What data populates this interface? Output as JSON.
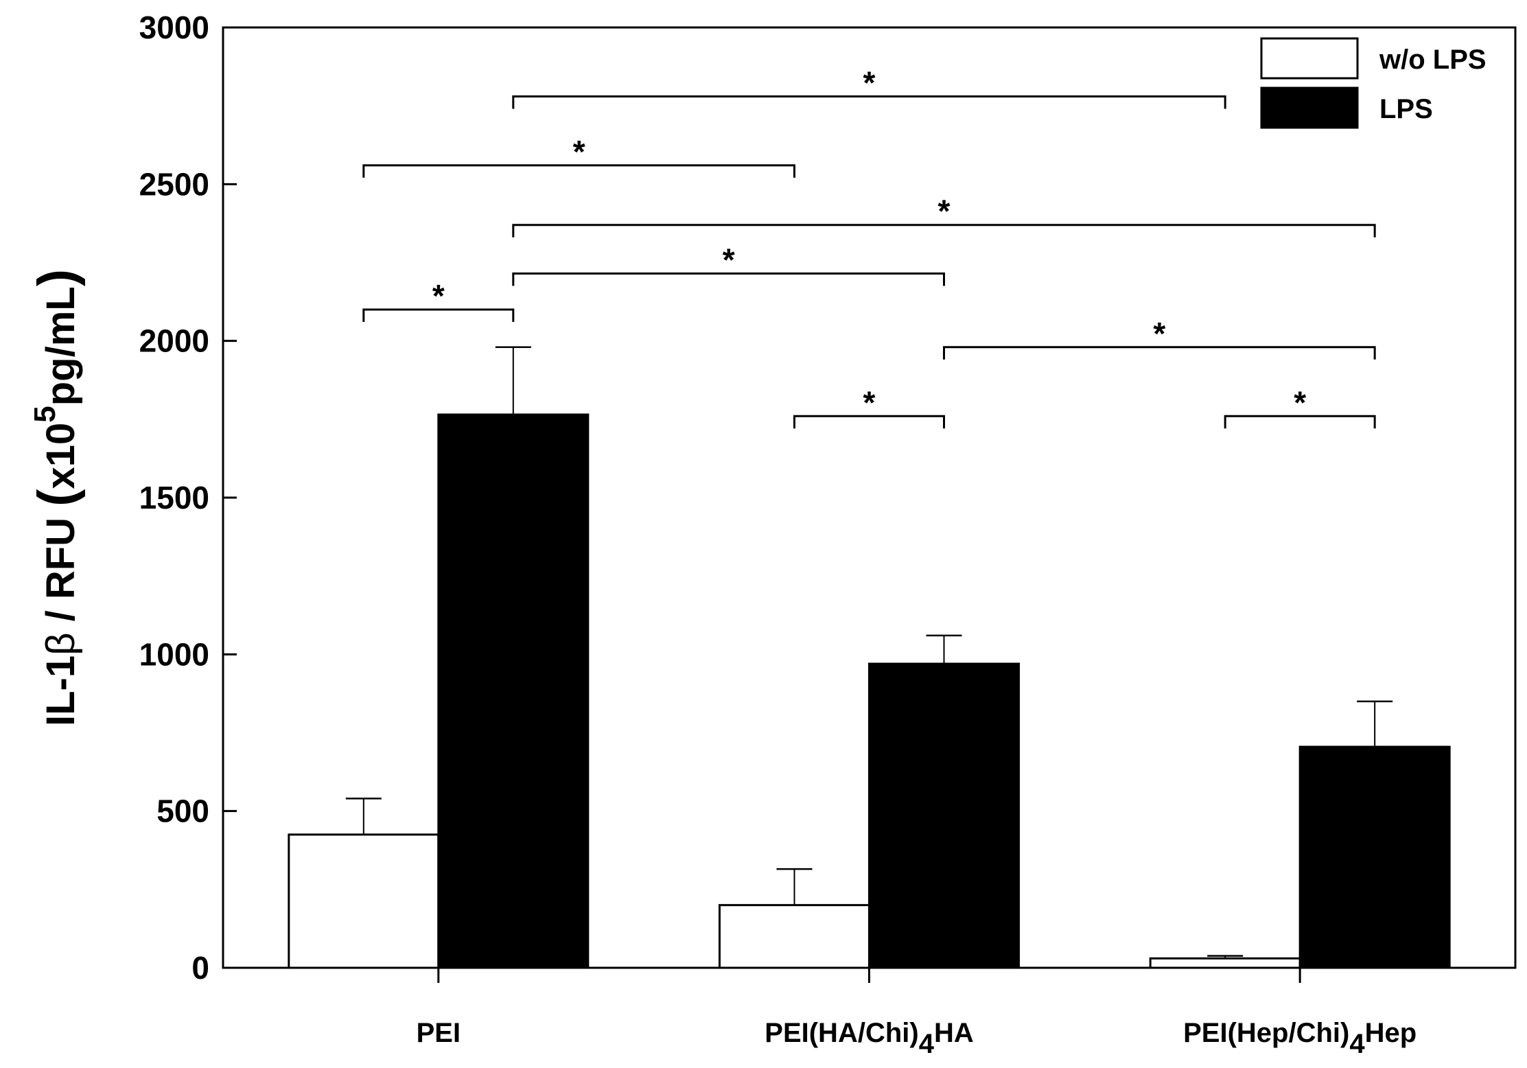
{
  "chart_data": {
    "type": "bar",
    "categories": [
      "PEI",
      "PEI(HA/Chi)4HA",
      "PEI(Hep/Chi)4Hep"
    ],
    "category_display": [
      {
        "main": "PEI",
        "sub": "",
        "tail": ""
      },
      {
        "main": "PEI(HA/Chi)",
        "sub": "4",
        "tail": "HA"
      },
      {
        "main": "PEI(Hep/Chi)",
        "sub": "4",
        "tail": "Hep"
      }
    ],
    "series": [
      {
        "name": "w/o LPS",
        "color": "#ffffff",
        "values": [
          425,
          200,
          30
        ],
        "errors": [
          115,
          115,
          8
        ]
      },
      {
        "name": "LPS",
        "color": "#000000",
        "values": [
          1765,
          970,
          705
        ],
        "errors": [
          215,
          90,
          145
        ]
      }
    ],
    "ylabel": {
      "prefix": "IL-1",
      "beta": "β",
      "middle": " / RFU ",
      "paren_open": "(",
      "unit_base": "x10",
      "unit_exp": "5",
      "unit_tail": "pg/mL",
      "paren_close": ")"
    },
    "xlabel": "",
    "ylim": [
      0,
      3000
    ],
    "yticks": [
      0,
      500,
      1000,
      1500,
      2000,
      2500,
      3000
    ],
    "legend_position": "top-right",
    "grid": false,
    "significance": [
      {
        "from": {
          "cat": 0,
          "series": 1
        },
        "to": {
          "cat": 2,
          "series": 0
        },
        "y": 2780,
        "label": "*"
      },
      {
        "from": {
          "cat": 0,
          "series": 0
        },
        "to": {
          "cat": 1,
          "series": 0
        },
        "y": 2560,
        "label": "*"
      },
      {
        "from": {
          "cat": 0,
          "series": 1
        },
        "to": {
          "cat": 2,
          "series": 1
        },
        "y": 2370,
        "label": "*"
      },
      {
        "from": {
          "cat": 0,
          "series": 1
        },
        "to": {
          "cat": 1,
          "series": 1
        },
        "y": 2215,
        "label": "*"
      },
      {
        "from": {
          "cat": 0,
          "series": 0
        },
        "to": {
          "cat": 0,
          "series": 1
        },
        "y": 2100,
        "label": "*"
      },
      {
        "from": {
          "cat": 1,
          "series": 1
        },
        "to": {
          "cat": 2,
          "series": 1
        },
        "y": 1980,
        "label": "*"
      },
      {
        "from": {
          "cat": 1,
          "series": 0
        },
        "to": {
          "cat": 1,
          "series": 1
        },
        "y": 1760,
        "label": "*"
      },
      {
        "from": {
          "cat": 2,
          "series": 0
        },
        "to": {
          "cat": 2,
          "series": 1
        },
        "y": 1760,
        "label": "*"
      }
    ]
  }
}
